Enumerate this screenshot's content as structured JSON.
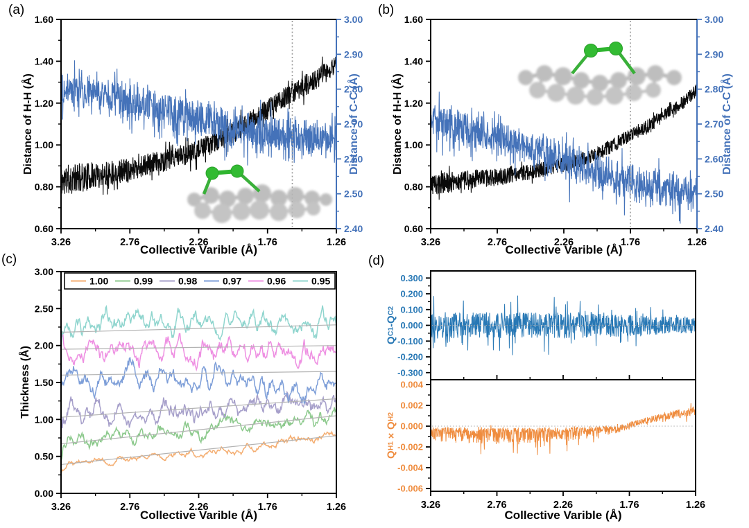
{
  "panels": {
    "a": "(a)",
    "b": "(b)",
    "c": "(c)",
    "d": "(d)"
  },
  "chart_data": {
    "a": {
      "type": "line",
      "xlabel": "Collective Varible (Å)",
      "x_ticks": [
        "3.26",
        "2.76",
        "2.26",
        "1.76",
        "1.26"
      ],
      "x_range": [
        3.26,
        1.26
      ],
      "left_axis": {
        "label": "Distance of H-H (Å)",
        "color": "#000000",
        "range": [
          0.6,
          1.6
        ],
        "ticks": [
          "0.60",
          "0.80",
          "1.00",
          "1.20",
          "1.40",
          "1.60"
        ]
      },
      "right_axis": {
        "label": "Distance of C-C (Å)",
        "color": "#4472b9",
        "range": [
          2.4,
          3.0
        ],
        "ticks": [
          "2.40",
          "2.50",
          "2.60",
          "2.70",
          "2.80",
          "2.90",
          "3.00"
        ]
      },
      "vline_x": 1.58,
      "inset": "side-view carbon ring with green H-H pair bridging above",
      "series": [
        {
          "name": "H-H",
          "axis": "left",
          "color": "#0a0a0a",
          "width": 1.1,
          "seed": 11,
          "n": 1100,
          "x_range": [
            3.26,
            1.26
          ],
          "spike": {
            "prob": 0.06,
            "mult": 1.8
          },
          "trend": [
            [
              3.26,
              0.83
            ],
            [
              3.0,
              0.855
            ],
            [
              2.76,
              0.885
            ],
            [
              2.5,
              0.925
            ],
            [
              2.26,
              0.975
            ],
            [
              2.0,
              1.06
            ],
            [
              1.76,
              1.17
            ],
            [
              1.58,
              1.25
            ],
            [
              1.4,
              1.315
            ],
            [
              1.26,
              1.385
            ]
          ],
          "amp": [
            [
              3.26,
              0.075
            ],
            [
              2.76,
              0.055
            ],
            [
              2.26,
              0.05
            ],
            [
              1.26,
              0.05
            ]
          ]
        },
        {
          "name": "C-C",
          "axis": "right",
          "color": "#4472b9",
          "width": 1.1,
          "seed": 22,
          "n": 1000,
          "x_range": [
            3.26,
            1.26
          ],
          "spike": {
            "prob": 0.12,
            "mult": 2.0
          },
          "trend": [
            [
              3.26,
              2.805
            ],
            [
              2.9,
              2.785
            ],
            [
              2.6,
              2.755
            ],
            [
              2.3,
              2.725
            ],
            [
              2.0,
              2.7
            ],
            [
              1.7,
              2.678
            ],
            [
              1.26,
              2.662
            ]
          ],
          "amp": [
            [
              3.26,
              0.042
            ],
            [
              2.3,
              0.047
            ],
            [
              1.26,
              0.042
            ]
          ],
          "neg_amp": [
            [
              3.26,
              0.025
            ],
            [
              2.3,
              0.032
            ],
            [
              1.26,
              0.04
            ]
          ]
        }
      ]
    },
    "b": {
      "type": "line",
      "xlabel": "Collective Varible (Å)",
      "x_ticks": [
        "3.26",
        "2.76",
        "2.26",
        "1.76",
        "1.26"
      ],
      "x_range": [
        3.26,
        1.26
      ],
      "left_axis": {
        "label": "Distance of H-H (Å)",
        "color": "#000000",
        "range": [
          0.6,
          1.6
        ],
        "ticks": [
          "0.60",
          "0.80",
          "1.00",
          "1.20",
          "1.40",
          "1.60"
        ]
      },
      "right_axis": {
        "label": "Distance of C-C (Å)",
        "color": "#4472b9",
        "range": [
          2.4,
          3.0
        ],
        "ticks": [
          "2.40",
          "2.50",
          "2.60",
          "2.70",
          "2.80",
          "2.90",
          "3.00"
        ]
      },
      "vline_x": 1.76,
      "inset": "side-view carbon ring with green H-H pair bridging above",
      "series": [
        {
          "name": "H-H",
          "axis": "left",
          "color": "#0a0a0a",
          "width": 1.1,
          "seed": 33,
          "n": 1100,
          "x_range": [
            3.26,
            1.26
          ],
          "spike": {
            "prob": 0.05,
            "mult": 1.6
          },
          "trend": [
            [
              3.26,
              0.81
            ],
            [
              3.0,
              0.83
            ],
            [
              2.7,
              0.85
            ],
            [
              2.4,
              0.885
            ],
            [
              2.2,
              0.915
            ],
            [
              2.0,
              0.96
            ],
            [
              1.8,
              1.03
            ],
            [
              1.6,
              1.1
            ],
            [
              1.45,
              1.165
            ],
            [
              1.35,
              1.21
            ],
            [
              1.26,
              1.265
            ]
          ],
          "amp": [
            [
              3.26,
              0.055
            ],
            [
              2.8,
              0.042
            ],
            [
              2.4,
              0.035
            ],
            [
              1.26,
              0.032
            ]
          ]
        },
        {
          "name": "C-C",
          "axis": "right",
          "color": "#4472b9",
          "width": 1.1,
          "seed": 44,
          "n": 1000,
          "x_range": [
            3.26,
            1.26
          ],
          "spike": {
            "prob": 0.1,
            "mult": 1.9
          },
          "trend": [
            [
              3.26,
              2.715
            ],
            [
              3.0,
              2.69
            ],
            [
              2.7,
              2.66
            ],
            [
              2.4,
              2.625
            ],
            [
              2.2,
              2.6
            ],
            [
              2.0,
              2.575
            ],
            [
              1.8,
              2.55
            ],
            [
              1.6,
              2.53
            ],
            [
              1.4,
              2.515
            ],
            [
              1.26,
              2.508
            ]
          ],
          "amp": [
            [
              3.26,
              0.045
            ],
            [
              2.6,
              0.04
            ],
            [
              2.2,
              0.045
            ],
            [
              1.26,
              0.038
            ]
          ],
          "neg_amp": [
            [
              3.26,
              0.028
            ],
            [
              1.26,
              0.042
            ]
          ]
        }
      ]
    },
    "c": {
      "type": "line",
      "xlabel": "Collective Varible (Å)",
      "ylabel": "Thickness (Å)",
      "x_ticks": [
        "3.26",
        "2.76",
        "2.26",
        "1.76",
        "1.26"
      ],
      "x_range": [
        3.26,
        1.26
      ],
      "y_ticks": [
        "0.00",
        "0.50",
        "1.00",
        "1.50",
        "2.00",
        "2.50",
        "3.00"
      ],
      "y_range": [
        0.0,
        3.0
      ],
      "legend": [
        {
          "label": "1.00",
          "color": "#f4ae72"
        },
        {
          "label": "0.99",
          "color": "#8cc98c"
        },
        {
          "label": "0.98",
          "color": "#a69fca"
        },
        {
          "label": "0.97",
          "color": "#7d9ed8"
        },
        {
          "label": "0.96",
          "color": "#ee8fe2"
        },
        {
          "label": "0.95",
          "color": "#8fd5ce"
        }
      ],
      "guides": {
        "color": "#b3b3b3",
        "lines": [
          [
            0.39,
            0.78
          ],
          [
            0.67,
            1.05
          ],
          [
            1.03,
            1.28
          ],
          [
            1.6,
            1.65
          ],
          [
            1.95,
            2.0
          ],
          [
            2.18,
            2.28
          ]
        ]
      },
      "series": [
        {
          "name": "1.00",
          "color": "#f4ae72",
          "width": 1.5,
          "seed": 51,
          "n": 420,
          "smooth": 9,
          "x_range": [
            3.26,
            1.26
          ],
          "trend": [
            [
              3.26,
              0.4
            ],
            [
              2.76,
              0.47
            ],
            [
              2.26,
              0.555
            ],
            [
              1.76,
              0.655
            ],
            [
              1.26,
              0.78
            ]
          ],
          "amp": [
            [
              3.26,
              0.05
            ],
            [
              1.26,
              0.062
            ]
          ]
        },
        {
          "name": "0.99",
          "color": "#8cc98c",
          "width": 1.5,
          "seed": 52,
          "n": 420,
          "smooth": 9,
          "x_range": [
            3.26,
            1.26
          ],
          "trend": [
            [
              3.26,
              0.7
            ],
            [
              2.76,
              0.8
            ],
            [
              2.26,
              0.87
            ],
            [
              1.76,
              0.95
            ],
            [
              1.26,
              1.02
            ]
          ],
          "amp": [
            [
              3.26,
              0.11
            ],
            [
              1.26,
              0.12
            ]
          ]
        },
        {
          "name": "0.98",
          "color": "#a69fca",
          "width": 1.5,
          "seed": 53,
          "n": 420,
          "smooth": 9,
          "x_range": [
            3.26,
            1.26
          ],
          "trend": [
            [
              3.26,
              1.05
            ],
            [
              2.76,
              1.1
            ],
            [
              2.26,
              1.15
            ],
            [
              1.76,
              1.19
            ],
            [
              1.26,
              1.22
            ]
          ],
          "amp": [
            [
              3.26,
              0.16
            ],
            [
              1.26,
              0.16
            ]
          ]
        },
        {
          "name": "0.97",
          "color": "#7d9ed8",
          "width": 1.5,
          "seed": 54,
          "n": 420,
          "smooth": 9,
          "x_range": [
            3.26,
            1.26
          ],
          "trend": [
            [
              3.26,
              1.56
            ],
            [
              2.76,
              1.55
            ],
            [
              2.26,
              1.52
            ],
            [
              1.76,
              1.48
            ],
            [
              1.26,
              1.43
            ]
          ],
          "amp": [
            [
              3.26,
              0.17
            ],
            [
              1.26,
              0.17
            ]
          ]
        },
        {
          "name": "0.96",
          "color": "#ee8fe2",
          "width": 1.5,
          "seed": 55,
          "n": 420,
          "smooth": 9,
          "x_range": [
            3.26,
            1.26
          ],
          "trend": [
            [
              3.26,
              1.96
            ],
            [
              2.76,
              1.95
            ],
            [
              2.26,
              1.93
            ],
            [
              1.76,
              1.94
            ],
            [
              1.26,
              1.86
            ]
          ],
          "amp": [
            [
              3.26,
              0.17
            ],
            [
              1.26,
              0.17
            ]
          ]
        },
        {
          "name": "0.95",
          "color": "#8fd5ce",
          "width": 1.5,
          "seed": 56,
          "n": 420,
          "smooth": 9,
          "x_range": [
            3.26,
            1.26
          ],
          "trend": [
            [
              3.26,
              2.24
            ],
            [
              2.76,
              2.3
            ],
            [
              2.26,
              2.33
            ],
            [
              1.76,
              2.31
            ],
            [
              1.26,
              2.36
            ]
          ],
          "amp": [
            [
              3.26,
              0.16
            ],
            [
              1.26,
              0.16
            ]
          ]
        }
      ]
    },
    "d": {
      "type": "line",
      "xlabel": "Collective Varible (Å)",
      "x_ticks": [
        "3.26",
        "2.76",
        "2.26",
        "1.76",
        "1.26"
      ],
      "x_range": [
        3.26,
        1.26
      ],
      "top": {
        "ylabel_text": "QC1-QC2",
        "ylabel_segments": [
          {
            "t": "Q"
          },
          {
            "t": "C1",
            "sub": true
          },
          {
            "t": "-"
          },
          {
            "t": "Q"
          },
          {
            "t": "C2",
            "sub": true
          }
        ],
        "color": "#2878b5",
        "ticks": [
          "0.300",
          "0.200",
          "0.100",
          "0.000",
          "-0.100",
          "-0.200",
          "-0.300"
        ],
        "range": [
          -0.345,
          0.345
        ],
        "series": {
          "name": "QC1-QC2",
          "color": "#2878b5",
          "width": 1.0,
          "seed": 77,
          "n": 850,
          "x_range": [
            3.26,
            1.5
          ],
          "spike": {
            "prob": 0.1,
            "mult": 2.3
          },
          "trend": [
            [
              3.26,
              0.0
            ],
            [
              1.5,
              0.0
            ]
          ],
          "amp": [
            [
              3.26,
              0.085
            ],
            [
              2.2,
              0.08
            ],
            [
              1.8,
              0.062
            ],
            [
              1.5,
              0.05
            ]
          ]
        }
      },
      "bottom": {
        "ylabel_text": "QH1×QH2",
        "ylabel_segments": [
          {
            "t": "Q"
          },
          {
            "t": "H1",
            "sub": true
          },
          {
            "t": "×"
          },
          {
            "t": "Q"
          },
          {
            "t": "H2",
            "sub": true
          }
        ],
        "color": "#ef8c3e",
        "ticks": [
          "0.004",
          "0.002",
          "0.000",
          "-0.002",
          "-0.004",
          "-0.006"
        ],
        "range": [
          -0.00627,
          0.00447
        ],
        "series": {
          "name": "QH1xQH2",
          "color": "#ef8c3e",
          "width": 1.0,
          "seed": 88,
          "n": 850,
          "x_range": [
            3.26,
            1.5
          ],
          "spike": {
            "prob": 0.06,
            "mult": 2.4
          },
          "trend": [
            [
              3.26,
              -0.0003
            ],
            [
              2.6,
              -0.00035
            ],
            [
              2.2,
              -0.00025
            ],
            [
              2.0,
              -0.0001
            ],
            [
              1.9,
              0.0003
            ],
            [
              1.8,
              0.0007
            ],
            [
              1.65,
              0.0011
            ],
            [
              1.5,
              0.0015
            ]
          ],
          "amp": [
            [
              3.26,
              0.0002
            ],
            [
              2.0,
              0.00025
            ],
            [
              1.5,
              0.00045
            ]
          ],
          "neg_amp": [
            [
              3.26,
              0.0011
            ],
            [
              2.6,
              0.0013
            ],
            [
              2.2,
              0.00085
            ],
            [
              2.0,
              0.0004
            ],
            [
              1.9,
              0.0001
            ],
            [
              1.5,
              4e-05
            ]
          ]
        }
      }
    }
  }
}
